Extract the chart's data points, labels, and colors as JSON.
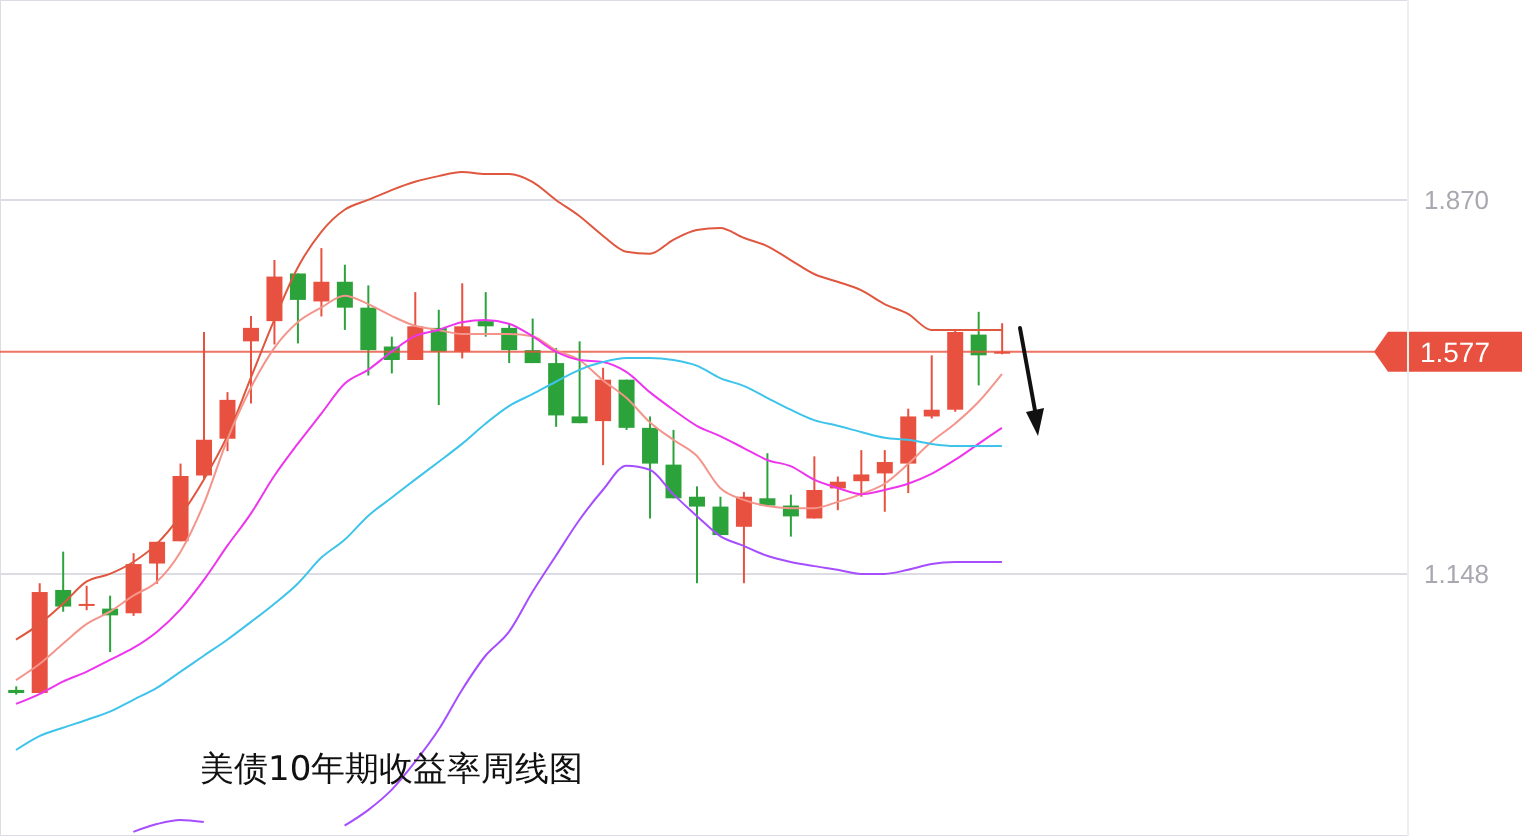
{
  "chart_data": {
    "type": "candlestick",
    "title": "美债10年期收益率周线图",
    "categories": [
      null,
      null,
      null,
      null,
      null,
      null,
      null,
      null,
      null,
      null,
      null,
      null,
      null,
      null,
      null,
      null,
      null,
      null,
      null,
      null,
      null,
      null,
      null,
      null,
      null,
      null,
      null,
      null,
      null,
      null,
      null,
      null,
      null,
      null,
      null,
      null,
      null,
      null,
      null,
      null,
      null,
      null,
      null
    ],
    "ohlc": [
      [
        0.924,
        0.931,
        0.915,
        0.918
      ],
      [
        0.918,
        1.13,
        0.918,
        1.113
      ],
      [
        1.117,
        1.191,
        1.075,
        1.085
      ],
      [
        1.088,
        1.125,
        1.078,
        1.09
      ],
      [
        1.081,
        1.106,
        0.997,
        1.068
      ],
      [
        1.072,
        1.188,
        1.067,
        1.167
      ],
      [
        1.168,
        1.21,
        1.129,
        1.21
      ],
      [
        1.211,
        1.361,
        1.211,
        1.337
      ],
      [
        1.338,
        1.615,
        1.332,
        1.407
      ],
      [
        1.409,
        1.499,
        1.385,
        1.484
      ],
      [
        1.597,
        1.646,
        1.477,
        1.623
      ],
      [
        1.636,
        1.754,
        1.591,
        1.722
      ],
      [
        1.728,
        1.728,
        1.593,
        1.677
      ],
      [
        1.674,
        1.777,
        1.645,
        1.712
      ],
      [
        1.712,
        1.745,
        1.619,
        1.662
      ],
      [
        1.662,
        1.705,
        1.531,
        1.58
      ],
      [
        1.587,
        1.606,
        1.535,
        1.561
      ],
      [
        1.561,
        1.692,
        1.561,
        1.626
      ],
      [
        1.623,
        1.658,
        1.474,
        1.577
      ],
      [
        1.577,
        1.709,
        1.564,
        1.626
      ],
      [
        1.636,
        1.692,
        1.606,
        1.626
      ],
      [
        1.623,
        1.632,
        1.555,
        1.58
      ],
      [
        1.58,
        1.641,
        1.555,
        1.555
      ],
      [
        1.555,
        1.584,
        1.432,
        1.454
      ],
      [
        1.452,
        1.597,
        1.439,
        1.439
      ],
      [
        1.443,
        1.546,
        1.358,
        1.523
      ],
      [
        1.523,
        1.523,
        1.426,
        1.43
      ],
      [
        1.43,
        1.452,
        1.255,
        1.361
      ],
      [
        1.359,
        1.426,
        1.294,
        1.294
      ],
      [
        1.297,
        1.317,
        1.13,
        1.278
      ],
      [
        1.278,
        1.297,
        1.223,
        1.223
      ],
      [
        1.239,
        1.306,
        1.13,
        1.297
      ],
      [
        1.294,
        1.381,
        1.278,
        1.28
      ],
      [
        1.28,
        1.301,
        1.22,
        1.259
      ],
      [
        1.255,
        1.375,
        1.255,
        1.31
      ],
      [
        1.313,
        1.336,
        1.271,
        1.326
      ],
      [
        1.327,
        1.387,
        1.297,
        1.34
      ],
      [
        1.342,
        1.387,
        1.268,
        1.364
      ],
      [
        1.361,
        1.467,
        1.304,
        1.452
      ],
      [
        1.452,
        1.57,
        1.448,
        1.465
      ],
      [
        1.465,
        1.619,
        1.461,
        1.615
      ],
      [
        1.61,
        1.654,
        1.512,
        1.57
      ],
      [
        1.576,
        1.632,
        1.572,
        1.577
      ]
    ],
    "colors": [
      "#2ca33a",
      "#e8513f",
      "#2ca33a",
      "#e8513f",
      "#2ca33a",
      "#e8513f",
      "#e8513f",
      "#e8513f",
      "#e8513f",
      "#e8513f",
      "#e8513f",
      "#e8513f",
      "#2ca33a",
      "#e8513f",
      "#2ca33a",
      "#2ca33a",
      "#2ca33a",
      "#e8513f",
      "#2ca33a",
      "#e8513f",
      "#2ca33a",
      "#2ca33a",
      "#2ca33a",
      "#2ca33a",
      "#2ca33a",
      "#e8513f",
      "#2ca33a",
      "#2ca33a",
      "#2ca33a",
      "#2ca33a",
      "#2ca33a",
      "#e8513f",
      "#2ca33a",
      "#2ca33a",
      "#e8513f",
      "#e8513f",
      "#e8513f",
      "#e8513f",
      "#e8513f",
      "#e8513f",
      "#e8513f",
      "#2ca33a",
      "#e8513f"
    ],
    "series": [
      {
        "type": "line",
        "color": "#e0573f",
        "values": [
          1.021,
          1.051,
          1.09,
          1.133,
          1.148,
          1.171,
          1.206,
          1.26,
          1.33,
          1.414,
          1.526,
          1.638,
          1.739,
          1.808,
          1.851,
          1.87,
          1.889,
          1.905,
          1.916,
          1.924,
          1.92,
          1.92,
          1.905,
          1.87,
          1.839,
          1.801,
          1.77,
          1.766,
          1.793,
          1.812,
          1.816,
          1.797,
          1.781,
          1.754,
          1.727,
          1.712,
          1.696,
          1.669,
          1.65,
          1.619,
          1.619,
          1.619,
          1.619
        ]
      },
      {
        "type": "line",
        "color": "#f4958b",
        "values": [
          0.943,
          0.974,
          1.013,
          1.051,
          1.075,
          1.106,
          1.133,
          1.19,
          1.283,
          1.407,
          1.507,
          1.584,
          1.634,
          1.662,
          1.685,
          1.669,
          1.646,
          1.627,
          1.619,
          1.611,
          1.611,
          1.611,
          1.607,
          1.58,
          1.561,
          1.522,
          1.488,
          1.441,
          1.407,
          1.376,
          1.314,
          1.291,
          1.279,
          1.275,
          1.275,
          1.287,
          1.302,
          1.322,
          1.36,
          1.403,
          1.438,
          1.48,
          1.534
        ]
      },
      {
        "type": "line",
        "color": "#ee35ee",
        "values": [
          0.897,
          0.916,
          0.94,
          0.959,
          0.982,
          1.005,
          1.036,
          1.079,
          1.136,
          1.202,
          1.264,
          1.337,
          1.399,
          1.457,
          1.515,
          1.542,
          1.577,
          1.607,
          1.619,
          1.634,
          1.638,
          1.631,
          1.607,
          1.577,
          1.561,
          1.557,
          1.538,
          1.499,
          1.465,
          1.434,
          1.414,
          1.391,
          1.368,
          1.356,
          1.33,
          1.314,
          1.302,
          1.31,
          1.322,
          1.341,
          1.368,
          1.399,
          1.43
        ]
      },
      {
        "type": "line",
        "color": "#3ec4ea",
        "values": [
          0.808,
          0.835,
          0.851,
          0.866,
          0.882,
          0.905,
          0.928,
          0.959,
          0.99,
          1.021,
          1.055,
          1.09,
          1.129,
          1.179,
          1.214,
          1.26,
          1.295,
          1.33,
          1.364,
          1.399,
          1.438,
          1.472,
          1.495,
          1.519,
          1.542,
          1.557,
          1.565,
          1.565,
          1.561,
          1.55,
          1.526,
          1.511,
          1.488,
          1.465,
          1.445,
          1.434,
          1.422,
          1.411,
          1.407,
          1.399,
          1.395,
          1.395,
          1.395
        ]
      },
      {
        "type": "line",
        "color": "#a64dff",
        "values": [
          null,
          null,
          null,
          null,
          null,
          0.65,
          0.665,
          0.673,
          0.669,
          null,
          null,
          null,
          null,
          null,
          0.662,
          0.692,
          0.731,
          0.785,
          0.847,
          0.924,
          0.99,
          1.036,
          1.113,
          1.183,
          1.252,
          1.31,
          1.357,
          1.349,
          1.302,
          1.26,
          1.221,
          1.202,
          1.183,
          1.171,
          1.163,
          1.156,
          1.148,
          1.148,
          1.156,
          1.167,
          1.171,
          1.171,
          1.171
        ]
      }
    ],
    "ylim": [
      0.642,
      2.256
    ],
    "yticks": [
      1.148,
      {
        "value": 1.87,
        "label": "1.870"
      }
    ],
    "ref_lines": [
      {
        "axis": "y",
        "value": 1.577,
        "label": "1.577",
        "color": "#e8513f"
      }
    ],
    "grid": true,
    "tick_labels": "y"
  }
}
